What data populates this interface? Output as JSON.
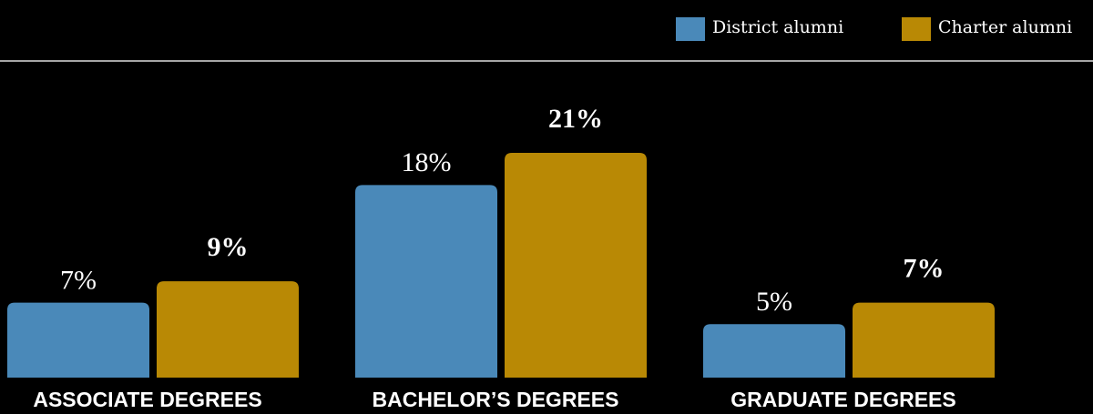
{
  "chart_data": {
    "type": "bar",
    "categories": [
      "ASSOCIATE DEGREES",
      "BACHELOR’S DEGREES",
      "GRADUATE DEGREES"
    ],
    "series": [
      {
        "name": "District alumni",
        "color": "#4a89b9",
        "values": [
          7,
          18,
          5
        ],
        "value_labels": [
          "7%",
          "18%",
          "5%"
        ]
      },
      {
        "name": "Charter alumni",
        "color": "#b98905",
        "values": [
          9,
          21,
          7
        ],
        "value_labels": [
          "9%",
          "21%",
          "7%"
        ]
      }
    ],
    "legend": "top-right"
  }
}
